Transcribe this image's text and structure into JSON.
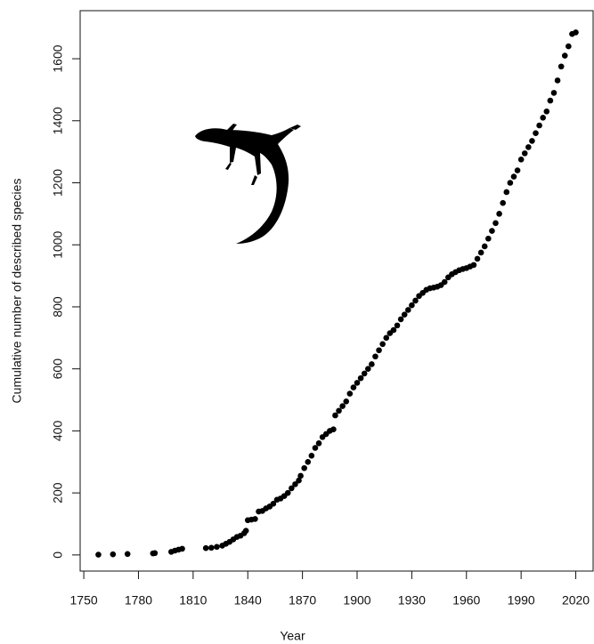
{
  "chart_data": {
    "type": "scatter",
    "x_label": "Year",
    "y_label": "Cumulative number of described species",
    "color": "#000000",
    "xlim": [
      1748,
      2030
    ],
    "ylim": [
      -52,
      1755
    ],
    "xticks": [
      1750,
      1780,
      1810,
      1840,
      1870,
      1900,
      1930,
      1960,
      1990,
      2020
    ],
    "yticks": [
      0,
      200,
      400,
      600,
      800,
      1000,
      1200,
      1400,
      1600
    ],
    "x": [
      1758,
      1766,
      1774,
      1788,
      1789,
      1798,
      1800,
      1802,
      1804,
      1817,
      1820,
      1823,
      1826,
      1828,
      1830,
      1832,
      1834,
      1836,
      1838,
      1839,
      1840,
      1842,
      1844,
      1846,
      1848,
      1850,
      1852,
      1854,
      1856,
      1858,
      1860,
      1862,
      1864,
      1866,
      1868,
      1869,
      1871,
      1873,
      1875,
      1877,
      1879,
      1881,
      1883,
      1885,
      1887,
      1888,
      1890,
      1892,
      1894,
      1896,
      1898,
      1900,
      1902,
      1904,
      1906,
      1908,
      1910,
      1912,
      1914,
      1916,
      1918,
      1920,
      1922,
      1924,
      1926,
      1928,
      1930,
      1932,
      1934,
      1936,
      1938,
      1940,
      1942,
      1944,
      1946,
      1948,
      1950,
      1952,
      1954,
      1956,
      1958,
      1960,
      1962,
      1964,
      1966,
      1968,
      1970,
      1972,
      1974,
      1976,
      1978,
      1980,
      1982,
      1984,
      1986,
      1988,
      1990,
      1992,
      1994,
      1996,
      1998,
      2000,
      2002,
      2004,
      2006,
      2008,
      2010,
      2012,
      2014,
      2016,
      2018,
      2020
    ],
    "values": [
      1,
      2,
      3,
      5,
      6,
      10,
      14,
      17,
      20,
      22,
      23,
      26,
      30,
      36,
      42,
      50,
      58,
      62,
      70,
      78,
      112,
      114,
      116,
      140,
      142,
      150,
      156,
      165,
      178,
      182,
      190,
      200,
      215,
      228,
      240,
      255,
      280,
      300,
      320,
      345,
      360,
      380,
      390,
      400,
      405,
      450,
      465,
      480,
      495,
      520,
      540,
      555,
      570,
      585,
      600,
      615,
      640,
      660,
      680,
      700,
      715,
      725,
      740,
      760,
      775,
      790,
      805,
      820,
      835,
      845,
      855,
      860,
      862,
      865,
      870,
      880,
      895,
      905,
      912,
      918,
      922,
      925,
      930,
      935,
      955,
      975,
      995,
      1020,
      1045,
      1070,
      1100,
      1135,
      1170,
      1200,
      1220,
      1240,
      1275,
      1295,
      1315,
      1335,
      1360,
      1385,
      1410,
      1430,
      1465,
      1490,
      1530,
      1575,
      1610,
      1640,
      1680,
      1685
    ]
  }
}
